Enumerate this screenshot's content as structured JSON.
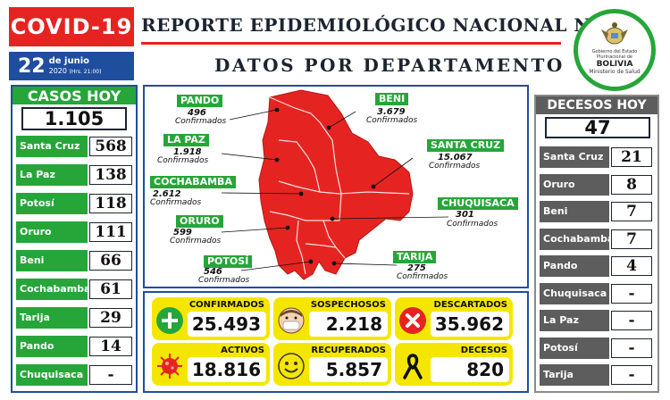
{
  "header": {
    "badge": "COVID-19",
    "title": "REPORTE EPIDEMIOLÓGICO NACIONAL Nº 99",
    "subtitle": "DATOS POR DEPARTAMENTO",
    "date_day": "22",
    "date_month": "de junio",
    "date_year": "2020",
    "date_time": "(Hrs. 21:00)"
  },
  "logo": {
    "small_text": "Gobierno del Estado Plurinacional de",
    "name": "BOLIVIA",
    "ministry": "Ministerio de Salud"
  },
  "cases_today": {
    "title": "CASOS HOY",
    "total": "1.105",
    "rows": [
      {
        "label": "Santa Cruz",
        "value": "568"
      },
      {
        "label": "La Paz",
        "value": "138"
      },
      {
        "label": "Potosí",
        "value": "118"
      },
      {
        "label": "Oruro",
        "value": "111"
      },
      {
        "label": "Beni",
        "value": "66"
      },
      {
        "label": "Cochabamba",
        "value": "61"
      },
      {
        "label": "Tarija",
        "value": "29"
      },
      {
        "label": "Pando",
        "value": "14"
      },
      {
        "label": "Chuquisaca",
        "value": "-"
      }
    ]
  },
  "deaths_today": {
    "title": "DECESOS HOY",
    "total": "47",
    "rows": [
      {
        "label": "Santa Cruz",
        "value": "21"
      },
      {
        "label": "Oruro",
        "value": "8"
      },
      {
        "label": "Beni",
        "value": "7"
      },
      {
        "label": "Cochabamba",
        "value": "7"
      },
      {
        "label": "Pando",
        "value": "4"
      },
      {
        "label": "Chuquisaca",
        "value": "-"
      },
      {
        "label": "La Paz",
        "value": "-"
      },
      {
        "label": "Potosí",
        "value": "-"
      },
      {
        "label": "Tarija",
        "value": "-"
      }
    ]
  },
  "map": {
    "confirmed_word": "Confirmados",
    "departments": [
      {
        "name": "PANDO",
        "value": "496"
      },
      {
        "name": "LA PAZ",
        "value": "1.918"
      },
      {
        "name": "COCHABAMBA",
        "value": "2.612"
      },
      {
        "name": "ORURO",
        "value": "599"
      },
      {
        "name": "POTOSÍ",
        "value": "546"
      },
      {
        "name": "BENI",
        "value": "3.679"
      },
      {
        "name": "SANTA CRUZ",
        "value": "15.067"
      },
      {
        "name": "CHUQUISACA",
        "value": "301"
      },
      {
        "name": "TARIJA",
        "value": "275"
      }
    ]
  },
  "summary": [
    {
      "title": "CONFIRMADOS",
      "value": "25.493",
      "icon": "plus-icon"
    },
    {
      "title": "SOSPECHOSOS",
      "value": "2.218",
      "icon": "masked-face-icon"
    },
    {
      "title": "DESCARTADOS",
      "value": "35.962",
      "icon": "x-circle-icon"
    },
    {
      "title": "ACTIVOS",
      "value": "18.816",
      "icon": "virus-icon"
    },
    {
      "title": "RECUPERADOS",
      "value": "5.857",
      "icon": "smiley-icon"
    },
    {
      "title": "DECESOS",
      "value": "820",
      "icon": "ribbon-icon"
    }
  ],
  "colors": {
    "red": "#e52421",
    "green": "#26a639",
    "blue": "#1f4e9e",
    "gray": "#5d5d5d",
    "yellow": "#f5e600"
  }
}
